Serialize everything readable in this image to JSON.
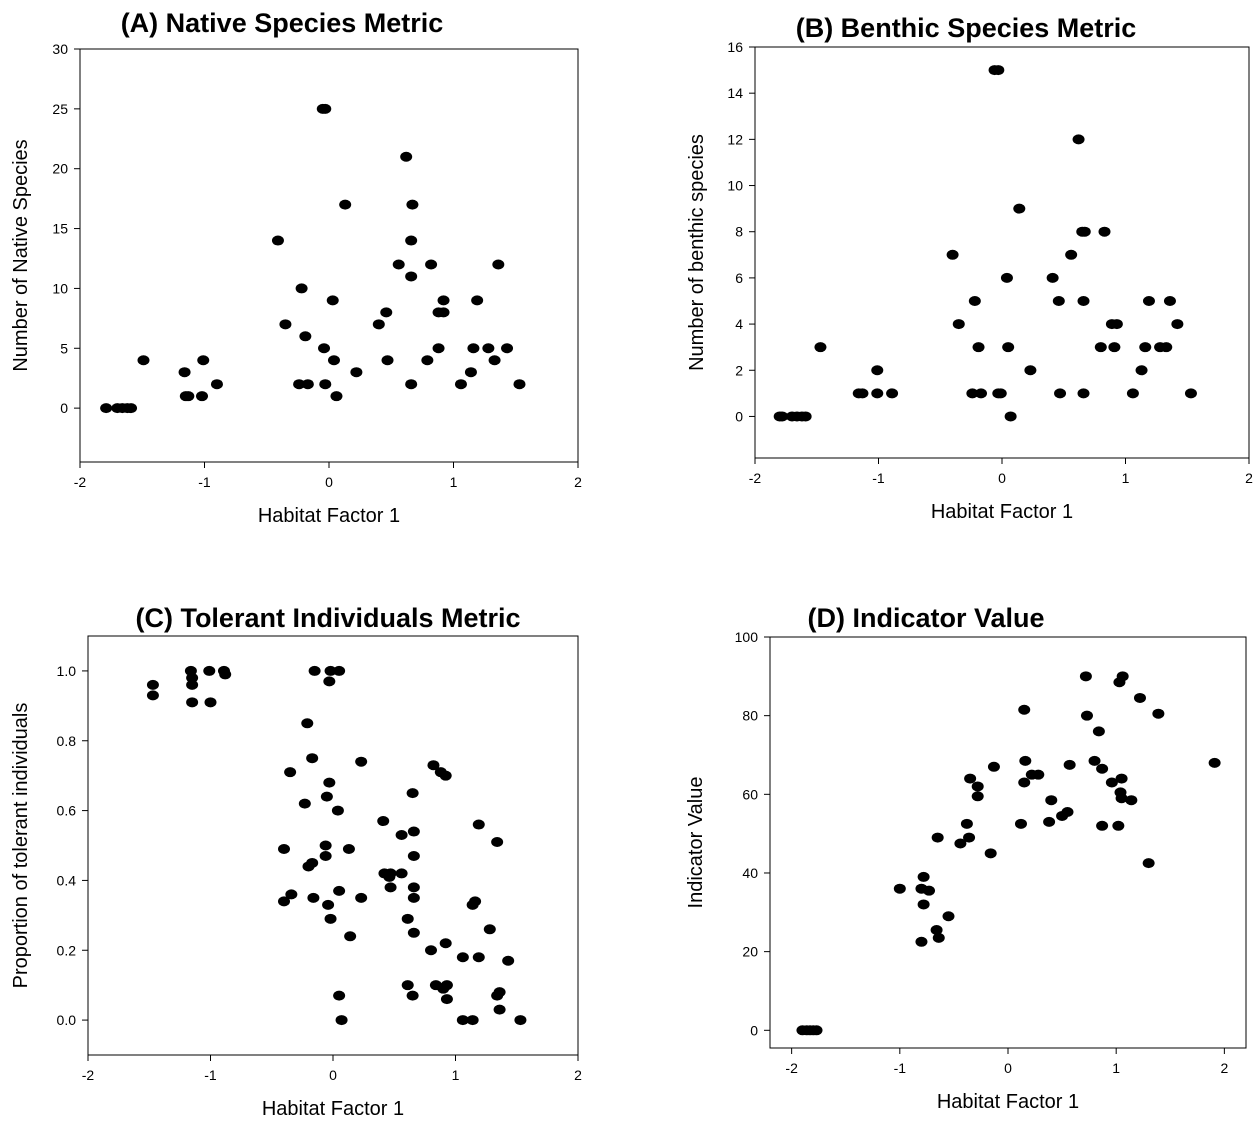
{
  "chart_data": [
    {
      "type": "scatter",
      "title": "(A) Native Species Metric",
      "xlabel": "Habitat Factor 1",
      "ylabel": "Number of Native Species",
      "xlim": [
        -2,
        2
      ],
      "ylim": [
        -4.5,
        30
      ],
      "xticks": [
        "-2",
        "-1",
        "0",
        "1",
        "2"
      ],
      "yticks": [
        "0",
        "5",
        "10",
        "15",
        "20",
        "25",
        "30"
      ],
      "grid": false,
      "marker_color": "#000000",
      "points": [
        [
          -1.79,
          0
        ],
        [
          -1.7,
          0
        ],
        [
          -1.66,
          0
        ],
        [
          -1.62,
          0
        ],
        [
          -1.59,
          0
        ],
        [
          -1.49,
          4
        ],
        [
          -1.16,
          3
        ],
        [
          -1.15,
          1
        ],
        [
          -1.13,
          1
        ],
        [
          -1.01,
          4
        ],
        [
          -1.02,
          1
        ],
        [
          -0.9,
          2
        ],
        [
          -0.41,
          14
        ],
        [
          -0.35,
          7
        ],
        [
          -0.24,
          2
        ],
        [
          -0.22,
          10
        ],
        [
          -0.19,
          6
        ],
        [
          -0.17,
          2
        ],
        [
          -0.05,
          25
        ],
        [
          -0.03,
          25
        ],
        [
          -0.04,
          5
        ],
        [
          -0.03,
          2
        ],
        [
          0.03,
          9
        ],
        [
          0.04,
          4
        ],
        [
          0.06,
          1
        ],
        [
          0.13,
          17
        ],
        [
          0.22,
          3
        ],
        [
          0.4,
          7
        ],
        [
          0.46,
          8
        ],
        [
          0.47,
          4
        ],
        [
          0.56,
          12
        ],
        [
          0.62,
          21
        ],
        [
          0.66,
          14
        ],
        [
          0.67,
          17
        ],
        [
          0.66,
          11
        ],
        [
          0.66,
          2
        ],
        [
          0.79,
          4
        ],
        [
          0.82,
          12
        ],
        [
          0.88,
          5
        ],
        [
          0.88,
          8
        ],
        [
          0.92,
          8
        ],
        [
          0.92,
          9
        ],
        [
          1.06,
          2
        ],
        [
          1.14,
          3
        ],
        [
          1.16,
          5
        ],
        [
          1.19,
          9
        ],
        [
          1.28,
          5
        ],
        [
          1.33,
          4
        ],
        [
          1.36,
          12
        ],
        [
          1.43,
          5
        ],
        [
          1.53,
          2
        ]
      ]
    },
    {
      "type": "scatter",
      "title": "(B) Benthic Species Metric",
      "xlabel": "Habitat Factor 1",
      "ylabel": "Number of benthic species",
      "xlim": [
        -2,
        2
      ],
      "ylim": [
        -1.8,
        16
      ],
      "xticks": [
        "-2",
        "-1",
        "0",
        "1",
        "2"
      ],
      "yticks": [
        "0",
        "2",
        "4",
        "6",
        "8",
        "10",
        "12",
        "14",
        "16"
      ],
      "grid": false,
      "marker_color": "#000000",
      "points": [
        [
          -1.8,
          0
        ],
        [
          -1.78,
          0
        ],
        [
          -1.7,
          0
        ],
        [
          -1.66,
          0
        ],
        [
          -1.62,
          0
        ],
        [
          -1.59,
          0
        ],
        [
          -1.47,
          3
        ],
        [
          -1.16,
          1
        ],
        [
          -1.13,
          1
        ],
        [
          -1.01,
          2
        ],
        [
          -1.01,
          1
        ],
        [
          -0.89,
          1
        ],
        [
          -0.4,
          7
        ],
        [
          -0.35,
          4
        ],
        [
          -0.24,
          1
        ],
        [
          -0.22,
          5
        ],
        [
          -0.19,
          3
        ],
        [
          -0.17,
          1
        ],
        [
          -0.06,
          15
        ],
        [
          -0.03,
          15
        ],
        [
          -0.03,
          1
        ],
        [
          -0.01,
          1
        ],
        [
          0.04,
          6
        ],
        [
          0.05,
          3
        ],
        [
          0.07,
          0
        ],
        [
          0.14,
          9
        ],
        [
          0.23,
          2
        ],
        [
          0.41,
          6
        ],
        [
          0.46,
          5
        ],
        [
          0.47,
          1
        ],
        [
          0.56,
          7
        ],
        [
          0.62,
          12
        ],
        [
          0.65,
          8
        ],
        [
          0.67,
          8
        ],
        [
          0.66,
          5
        ],
        [
          0.66,
          1
        ],
        [
          0.8,
          3
        ],
        [
          0.83,
          8
        ],
        [
          0.89,
          4
        ],
        [
          0.91,
          3
        ],
        [
          0.93,
          4
        ],
        [
          1.06,
          1
        ],
        [
          1.13,
          2
        ],
        [
          1.16,
          3
        ],
        [
          1.19,
          5
        ],
        [
          1.28,
          3
        ],
        [
          1.33,
          3
        ],
        [
          1.36,
          5
        ],
        [
          1.42,
          4
        ],
        [
          1.53,
          1
        ]
      ]
    },
    {
      "type": "scatter",
      "title": "(C) Tolerant Individuals Metric",
      "xlabel": "Habitat Factor 1",
      "ylabel": "Proportion of tolerant individuals",
      "xlim": [
        -2,
        2
      ],
      "ylim": [
        -0.1,
        1.1
      ],
      "xticks": [
        "-2",
        "-1",
        "0",
        "1",
        "2"
      ],
      "yticks": [
        "0.0",
        "0.2",
        "0.4",
        "0.6",
        "0.8",
        "1.0"
      ],
      "grid": false,
      "marker_color": "#000000",
      "points": [
        [
          -1.47,
          0.96
        ],
        [
          -1.47,
          0.93
        ],
        [
          -1.16,
          1.0
        ],
        [
          -1.15,
          0.98
        ],
        [
          -1.15,
          0.96
        ],
        [
          -1.15,
          0.91
        ],
        [
          -1.01,
          1.0
        ],
        [
          -1.0,
          0.91
        ],
        [
          -0.89,
          1.0
        ],
        [
          -0.88,
          0.99
        ],
        [
          -0.4,
          0.49
        ],
        [
          -0.4,
          0.34
        ],
        [
          -0.35,
          0.71
        ],
        [
          -0.34,
          0.36
        ],
        [
          -0.23,
          0.62
        ],
        [
          -0.21,
          0.85
        ],
        [
          -0.2,
          0.44
        ],
        [
          -0.17,
          0.75
        ],
        [
          -0.17,
          0.45
        ],
        [
          -0.15,
          1.0
        ],
        [
          -0.16,
          0.35
        ],
        [
          -0.06,
          0.5
        ],
        [
          -0.06,
          0.47
        ],
        [
          -0.05,
          0.64
        ],
        [
          -0.04,
          0.33
        ],
        [
          -0.03,
          0.68
        ],
        [
          -0.02,
          1.0
        ],
        [
          -0.03,
          0.97
        ],
        [
          -0.02,
          0.29
        ],
        [
          0.04,
          0.6
        ],
        [
          0.05,
          1.0
        ],
        [
          0.05,
          0.37
        ],
        [
          0.05,
          0.07
        ],
        [
          0.07,
          0.0
        ],
        [
          0.13,
          0.49
        ],
        [
          0.14,
          0.24
        ],
        [
          0.23,
          0.74
        ],
        [
          0.23,
          0.35
        ],
        [
          0.41,
          0.57
        ],
        [
          0.42,
          0.42
        ],
        [
          0.46,
          0.41
        ],
        [
          0.47,
          0.42
        ],
        [
          0.47,
          0.38
        ],
        [
          0.56,
          0.53
        ],
        [
          0.56,
          0.42
        ],
        [
          0.61,
          0.29
        ],
        [
          0.61,
          0.1
        ],
        [
          0.65,
          0.65
        ],
        [
          0.66,
          0.54
        ],
        [
          0.66,
          0.47
        ],
        [
          0.66,
          0.38
        ],
        [
          0.66,
          0.35
        ],
        [
          0.66,
          0.25
        ],
        [
          0.65,
          0.07
        ],
        [
          0.8,
          0.2
        ],
        [
          0.82,
          0.73
        ],
        [
          0.84,
          0.1
        ],
        [
          0.88,
          0.71
        ],
        [
          0.9,
          0.09
        ],
        [
          0.92,
          0.7
        ],
        [
          0.92,
          0.22
        ],
        [
          0.93,
          0.06
        ],
        [
          0.93,
          0.1
        ],
        [
          1.06,
          0.18
        ],
        [
          1.06,
          0.0
        ],
        [
          1.14,
          0.0
        ],
        [
          1.14,
          0.33
        ],
        [
          1.16,
          0.34
        ],
        [
          1.19,
          0.56
        ],
        [
          1.19,
          0.18
        ],
        [
          1.28,
          0.26
        ],
        [
          1.34,
          0.51
        ],
        [
          1.34,
          0.07
        ],
        [
          1.36,
          0.08
        ],
        [
          1.36,
          0.03
        ],
        [
          1.43,
          0.17
        ],
        [
          1.53,
          0.0
        ]
      ]
    },
    {
      "type": "scatter",
      "title": "(D) Indicator Value",
      "xlabel": "Habitat Factor 1",
      "ylabel": "Indicator Value",
      "xlim": [
        -2.2,
        2.2
      ],
      "ylim": [
        -4.5,
        100
      ],
      "xticks": [
        "-2",
        "-1",
        "0",
        "1",
        "2"
      ],
      "yticks": [
        "0",
        "20",
        "40",
        "60",
        "80",
        "100"
      ],
      "grid": false,
      "marker_color": "#000000",
      "points": [
        [
          -1.9,
          0
        ],
        [
          -1.86,
          0
        ],
        [
          -1.83,
          0
        ],
        [
          -1.8,
          0
        ],
        [
          -1.77,
          0
        ],
        [
          -1.0,
          36
        ],
        [
          -0.8,
          36
        ],
        [
          -0.78,
          39
        ],
        [
          -0.78,
          32
        ],
        [
          -0.8,
          22.5
        ],
        [
          -0.73,
          35.5
        ],
        [
          -0.66,
          25.5
        ],
        [
          -0.64,
          23.5
        ],
        [
          -0.65,
          49
        ],
        [
          -0.55,
          29
        ],
        [
          -0.44,
          47.5
        ],
        [
          -0.38,
          52.5
        ],
        [
          -0.35,
          64
        ],
        [
          -0.36,
          49
        ],
        [
          -0.28,
          62
        ],
        [
          -0.28,
          59.5
        ],
        [
          -0.16,
          45
        ],
        [
          -0.13,
          67
        ],
        [
          0.12,
          52.5
        ],
        [
          0.15,
          63
        ],
        [
          0.15,
          81.5
        ],
        [
          0.16,
          68.5
        ],
        [
          0.22,
          65
        ],
        [
          0.28,
          65
        ],
        [
          0.38,
          53
        ],
        [
          0.4,
          58.5
        ],
        [
          0.5,
          54.5
        ],
        [
          0.55,
          55.5
        ],
        [
          0.57,
          67.5
        ],
        [
          0.72,
          90
        ],
        [
          0.73,
          80
        ],
        [
          0.8,
          68.5
        ],
        [
          0.84,
          76
        ],
        [
          0.87,
          66.5
        ],
        [
          0.87,
          52
        ],
        [
          0.96,
          63
        ],
        [
          1.02,
          52
        ],
        [
          1.03,
          88.5
        ],
        [
          1.04,
          60.5
        ],
        [
          1.05,
          64
        ],
        [
          1.05,
          59
        ],
        [
          1.06,
          90
        ],
        [
          1.14,
          58.5
        ],
        [
          1.22,
          84.5
        ],
        [
          1.3,
          42.5
        ],
        [
          1.39,
          80.5
        ],
        [
          1.91,
          68
        ]
      ]
    }
  ]
}
